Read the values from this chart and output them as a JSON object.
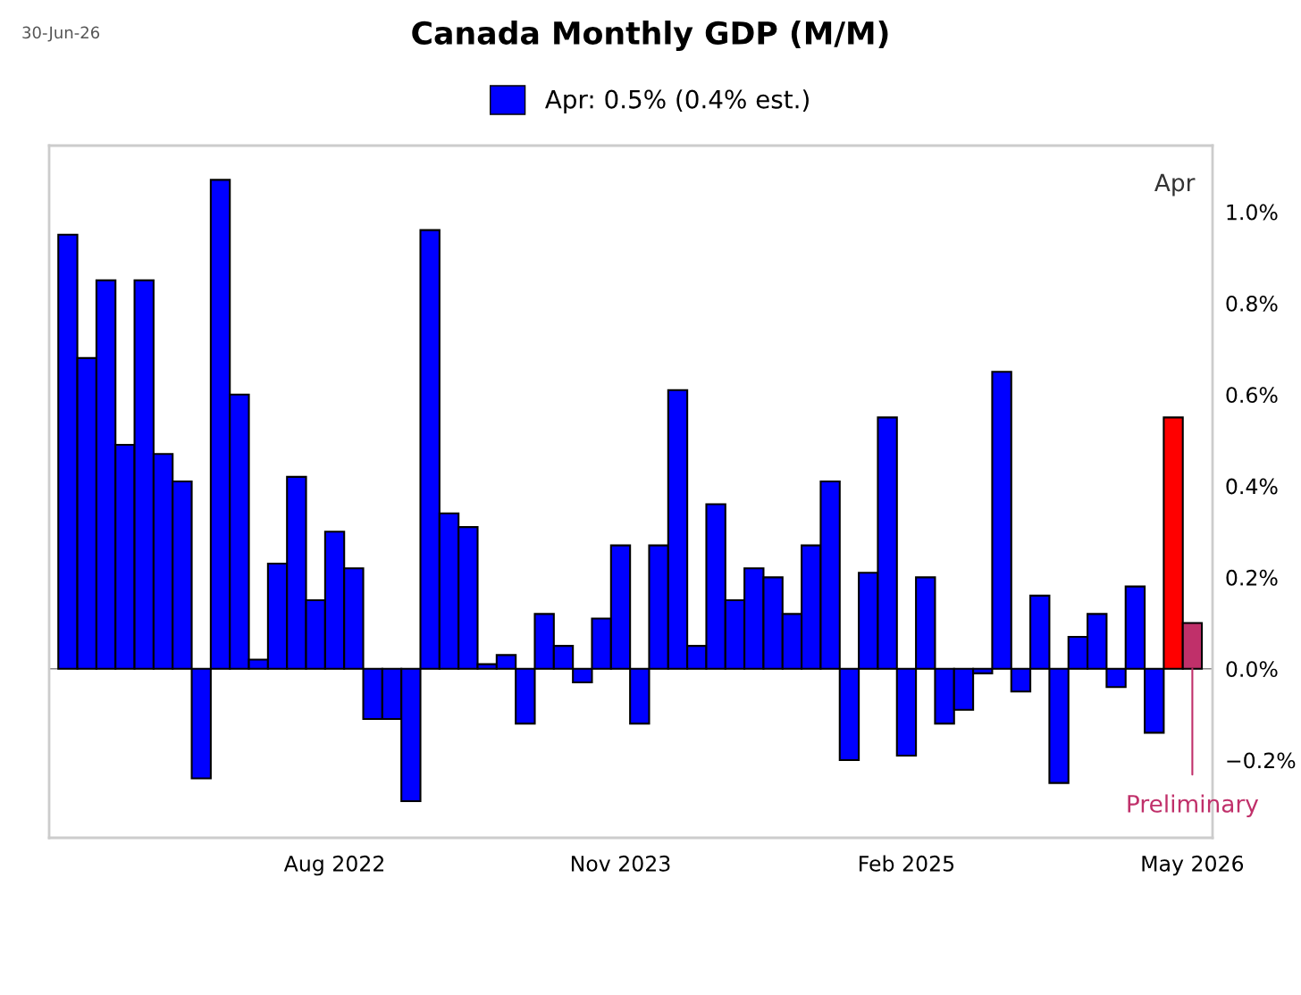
{
  "chart_data": {
    "type": "bar",
    "title": "Canada Monthly GDP (M/M)",
    "categories": [
      null,
      null,
      null,
      null,
      null,
      null,
      null,
      null,
      null,
      null,
      null,
      null,
      null,
      null,
      "Aug 2022",
      null,
      null,
      null,
      null,
      null,
      null,
      null,
      null,
      null,
      null,
      null,
      null,
      null,
      null,
      "Nov 2023",
      null,
      null,
      null,
      null,
      null,
      null,
      null,
      null,
      null,
      null,
      null,
      null,
      null,
      null,
      "Feb 2025",
      null,
      null,
      null,
      null,
      null,
      null,
      null,
      null,
      null,
      null,
      null,
      null,
      null,
      null,
      "May 2026"
    ],
    "series": [
      {
        "name": "Apr: 0.5% (0.4% est.)",
        "color": "#0000ff",
        "values": [
          0.95,
          0.68,
          0.85,
          0.49,
          0.85,
          0.47,
          0.41,
          -0.24,
          1.07,
          0.6,
          0.02,
          0.23,
          0.42,
          0.15,
          0.3,
          0.22,
          -0.11,
          -0.11,
          -0.29,
          0.96,
          0.34,
          0.31,
          0.01,
          0.03,
          -0.12,
          0.12,
          0.05,
          -0.03,
          0.11,
          0.27,
          -0.12,
          0.27,
          0.61,
          0.05,
          0.36,
          0.15,
          0.22,
          0.2,
          0.12,
          0.27,
          0.41,
          -0.2,
          0.21,
          0.55,
          -0.19,
          0.2,
          -0.12,
          -0.09,
          -0.01,
          0.65,
          -0.05,
          0.16,
          -0.25,
          0.07,
          0.12,
          -0.04,
          0.18,
          -0.14,
          0.55,
          0.1
        ],
        "colors": [
          "#0000ff",
          "#0000ff",
          "#0000ff",
          "#0000ff",
          "#0000ff",
          "#0000ff",
          "#0000ff",
          "#0000ff",
          "#0000ff",
          "#0000ff",
          "#0000ff",
          "#0000ff",
          "#0000ff",
          "#0000ff",
          "#0000ff",
          "#0000ff",
          "#0000ff",
          "#0000ff",
          "#0000ff",
          "#0000ff",
          "#0000ff",
          "#0000ff",
          "#0000ff",
          "#0000ff",
          "#0000ff",
          "#0000ff",
          "#0000ff",
          "#0000ff",
          "#0000ff",
          "#0000ff",
          "#0000ff",
          "#0000ff",
          "#0000ff",
          "#0000ff",
          "#0000ff",
          "#0000ff",
          "#0000ff",
          "#0000ff",
          "#0000ff",
          "#0000ff",
          "#0000ff",
          "#0000ff",
          "#0000ff",
          "#0000ff",
          "#0000ff",
          "#0000ff",
          "#0000ff",
          "#0000ff",
          "#0000ff",
          "#0000ff",
          "#0000ff",
          "#0000ff",
          "#0000ff",
          "#0000ff",
          "#0000ff",
          "#0000ff",
          "#0000ff",
          "#0000ff",
          "#ff0000",
          "#c0306a"
        ]
      }
    ],
    "ylim": [
      -0.37,
      1.145
    ],
    "yticks": [
      {
        "value": -0.2,
        "label": "−0.2%"
      },
      {
        "value": 0.0,
        "label": "0.0%"
      },
      {
        "value": 0.2,
        "label": "0.2%"
      },
      {
        "value": 0.4,
        "label": "0.4%"
      },
      {
        "value": 0.6,
        "label": "0.6%"
      },
      {
        "value": 0.8,
        "label": "0.8%"
      },
      {
        "value": 1.0,
        "label": "1.0%"
      }
    ],
    "annotations": [
      "30-Jun-26",
      "Apr",
      {
        "text": "Preliminary",
        "x": "May 2026",
        "y": 0.0
      }
    ],
    "ref_lines": [
      {
        "axis": "y",
        "value": 0.0,
        "color": "#888888"
      }
    ],
    "legend": "top",
    "grid": false
  }
}
